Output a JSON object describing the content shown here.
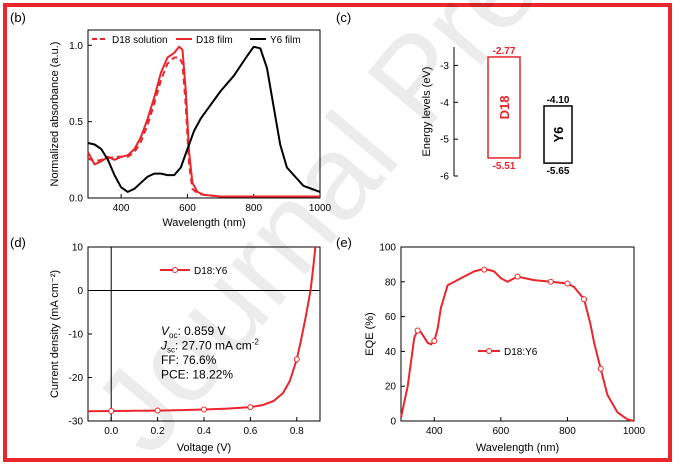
{
  "watermark": "Journal Pre-proofs",
  "colors": {
    "red": "#e8262b",
    "black": "#000000",
    "frame": "#e8262b"
  },
  "chart_data": [
    {
      "id": "b",
      "panel_label": "(b)",
      "type": "line",
      "xlabel": "Wavelength (nm)",
      "ylabel": "Normalized absorbance (a.u.)",
      "xlim": [
        300,
        1000
      ],
      "ylim": [
        0,
        1.1
      ],
      "xticks": [
        400,
        600,
        800,
        1000
      ],
      "yticks": [
        0.0,
        0.5,
        1.0
      ],
      "xtick_labels": [
        "400",
        "600",
        "800",
        "1000"
      ],
      "ytick_labels": [
        "0.0",
        "0.5",
        "1.0"
      ],
      "series": [
        {
          "name": "D18 solution",
          "color": "#e8262b",
          "dash": true,
          "x": [
            300,
            320,
            340,
            360,
            380,
            400,
            420,
            440,
            460,
            480,
            500,
            520,
            540,
            560,
            575,
            585,
            595,
            605,
            615,
            630,
            650,
            700,
            800,
            1000
          ],
          "y": [
            0.26,
            0.24,
            0.25,
            0.26,
            0.27,
            0.27,
            0.27,
            0.3,
            0.37,
            0.48,
            0.62,
            0.77,
            0.88,
            0.92,
            0.92,
            0.88,
            0.6,
            0.22,
            0.06,
            0.03,
            0.02,
            0.01,
            0.01,
            0.01
          ]
        },
        {
          "name": "D18 film",
          "color": "#e8262b",
          "dash": false,
          "x": [
            300,
            320,
            340,
            360,
            380,
            400,
            420,
            440,
            460,
            480,
            500,
            520,
            540,
            560,
            575,
            585,
            595,
            605,
            615,
            630,
            650,
            700,
            800,
            1000
          ],
          "y": [
            0.3,
            0.22,
            0.24,
            0.27,
            0.25,
            0.27,
            0.28,
            0.32,
            0.4,
            0.52,
            0.66,
            0.82,
            0.92,
            0.95,
            0.99,
            0.97,
            0.7,
            0.3,
            0.1,
            0.04,
            0.02,
            0.01,
            0.01,
            0.01
          ]
        },
        {
          "name": "Y6 film",
          "color": "#000000",
          "dash": false,
          "x": [
            300,
            320,
            340,
            360,
            380,
            400,
            420,
            440,
            460,
            480,
            500,
            520,
            540,
            560,
            580,
            600,
            620,
            640,
            660,
            700,
            740,
            780,
            800,
            820,
            840,
            860,
            880,
            900,
            950,
            1000
          ],
          "y": [
            0.36,
            0.35,
            0.32,
            0.25,
            0.15,
            0.07,
            0.04,
            0.06,
            0.1,
            0.14,
            0.16,
            0.16,
            0.15,
            0.15,
            0.2,
            0.32,
            0.44,
            0.52,
            0.58,
            0.7,
            0.8,
            0.93,
            0.99,
            0.98,
            0.85,
            0.6,
            0.35,
            0.2,
            0.08,
            0.04
          ]
        }
      ]
    },
    {
      "id": "c",
      "panel_label": "(c)",
      "type": "energy-levels",
      "ylabel": "Energy levels (eV)",
      "ylim": [
        -6,
        -2.5
      ],
      "yticks": [
        -3,
        -4,
        -5,
        -6
      ],
      "ytick_labels": [
        "-3",
        "-4",
        "-5",
        "-6"
      ],
      "materials": [
        {
          "name": "D18",
          "lumo": -2.77,
          "homo": -5.51,
          "lumo_label": "-2.77",
          "homo_label": "-5.51",
          "color": "#e8262b"
        },
        {
          "name": "Y6",
          "lumo": -4.1,
          "homo": -5.65,
          "lumo_label": "-4.10",
          "homo_label": "-5.65",
          "color": "#000000"
        }
      ]
    },
    {
      "id": "d",
      "panel_label": "(d)",
      "type": "line",
      "xlabel": "Voltage (V)",
      "ylabel": "Current density (mA cm⁻²)",
      "xlim": [
        -0.1,
        0.9
      ],
      "ylim": [
        -30,
        10
      ],
      "xticks": [
        0.0,
        0.2,
        0.4,
        0.6,
        0.8
      ],
      "yticks": [
        -30,
        -20,
        -10,
        0,
        10
      ],
      "xtick_labels": [
        "0.0",
        "0.2",
        "0.4",
        "0.6",
        "0.8"
      ],
      "ytick_labels": [
        "-30",
        "-20",
        "-10",
        "0",
        "10"
      ],
      "series": [
        {
          "name": "D18:Y6",
          "color": "#e8262b",
          "x": [
            -0.1,
            0.0,
            0.1,
            0.2,
            0.3,
            0.4,
            0.5,
            0.6,
            0.65,
            0.7,
            0.74,
            0.77,
            0.8,
            0.82,
            0.84,
            0.859,
            0.87,
            0.88
          ],
          "y": [
            -27.75,
            -27.7,
            -27.65,
            -27.6,
            -27.5,
            -27.35,
            -27.15,
            -26.8,
            -26.4,
            -25.4,
            -23.6,
            -20.8,
            -15.8,
            -11.0,
            -5.6,
            0.0,
            4.8,
            10.0
          ],
          "marker_x": [
            0.0,
            0.2,
            0.4,
            0.6,
            0.8
          ]
        }
      ],
      "annotations": [
        {
          "label": "V",
          "sub": "oc",
          "text": ": 0.859 V"
        },
        {
          "label": "J",
          "sub": "sc",
          "text": ": 27.70 mA cm",
          "sup": "-2"
        },
        {
          "label": "",
          "sub": "",
          "text": "FF: 76.6%"
        },
        {
          "label": "",
          "sub": "",
          "text": "PCE: 18.22%"
        }
      ]
    },
    {
      "id": "e",
      "panel_label": "(e)",
      "type": "line",
      "xlabel": "Wavelength (nm)",
      "ylabel": "EQE (%)",
      "xlim": [
        300,
        1000
      ],
      "ylim": [
        0,
        100
      ],
      "xticks": [
        400,
        600,
        800,
        1000
      ],
      "yticks": [
        0,
        20,
        40,
        60,
        80,
        100
      ],
      "xtick_labels": [
        "400",
        "600",
        "800",
        "1000"
      ],
      "ytick_labels": [
        "0",
        "20",
        "40",
        "60",
        "80",
        "100"
      ],
      "series": [
        {
          "name": "D18:Y6",
          "color": "#e8262b",
          "x": [
            300,
            320,
            340,
            350,
            360,
            380,
            390,
            400,
            410,
            420,
            440,
            460,
            480,
            500,
            520,
            540,
            560,
            580,
            600,
            620,
            650,
            700,
            750,
            800,
            820,
            850,
            870,
            880,
            900,
            920,
            950,
            980,
            1000
          ],
          "y": [
            2,
            20,
            48,
            52,
            51,
            45,
            44,
            46,
            53,
            65,
            78,
            80,
            82,
            84,
            86,
            87,
            87,
            86,
            82,
            80,
            83,
            81,
            80,
            79,
            77,
            70,
            55,
            45,
            30,
            15,
            5,
            1,
            0
          ],
          "marker_x": [
            350,
            400,
            550,
            650,
            750,
            800,
            850,
            900
          ]
        }
      ]
    }
  ]
}
